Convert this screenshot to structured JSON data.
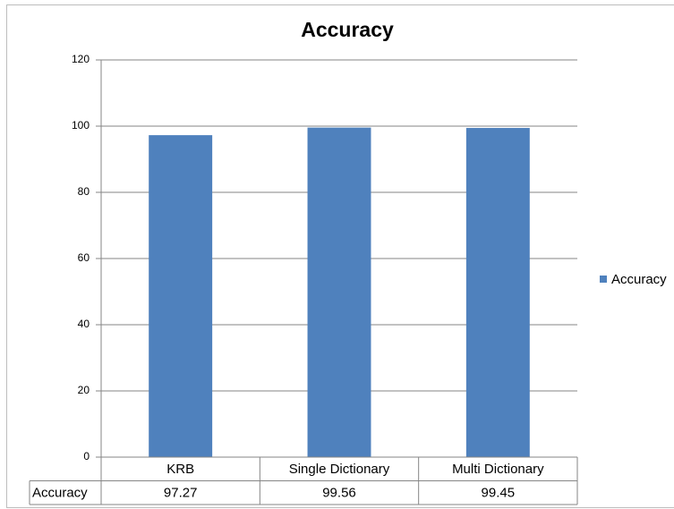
{
  "chart_data": {
    "type": "bar",
    "title": "Accuracy",
    "categories": [
      "KRB",
      "Single Dictionary",
      "Multi Dictionary"
    ],
    "series": [
      {
        "name": "Accuracy",
        "color": "#4f81bd",
        "values": [
          97.27,
          99.56,
          99.45
        ]
      }
    ],
    "ylim": [
      0,
      120
    ],
    "yticks": [
      0,
      20,
      40,
      60,
      80,
      100,
      120
    ],
    "grid": true,
    "legend": "right",
    "data_table": true
  }
}
